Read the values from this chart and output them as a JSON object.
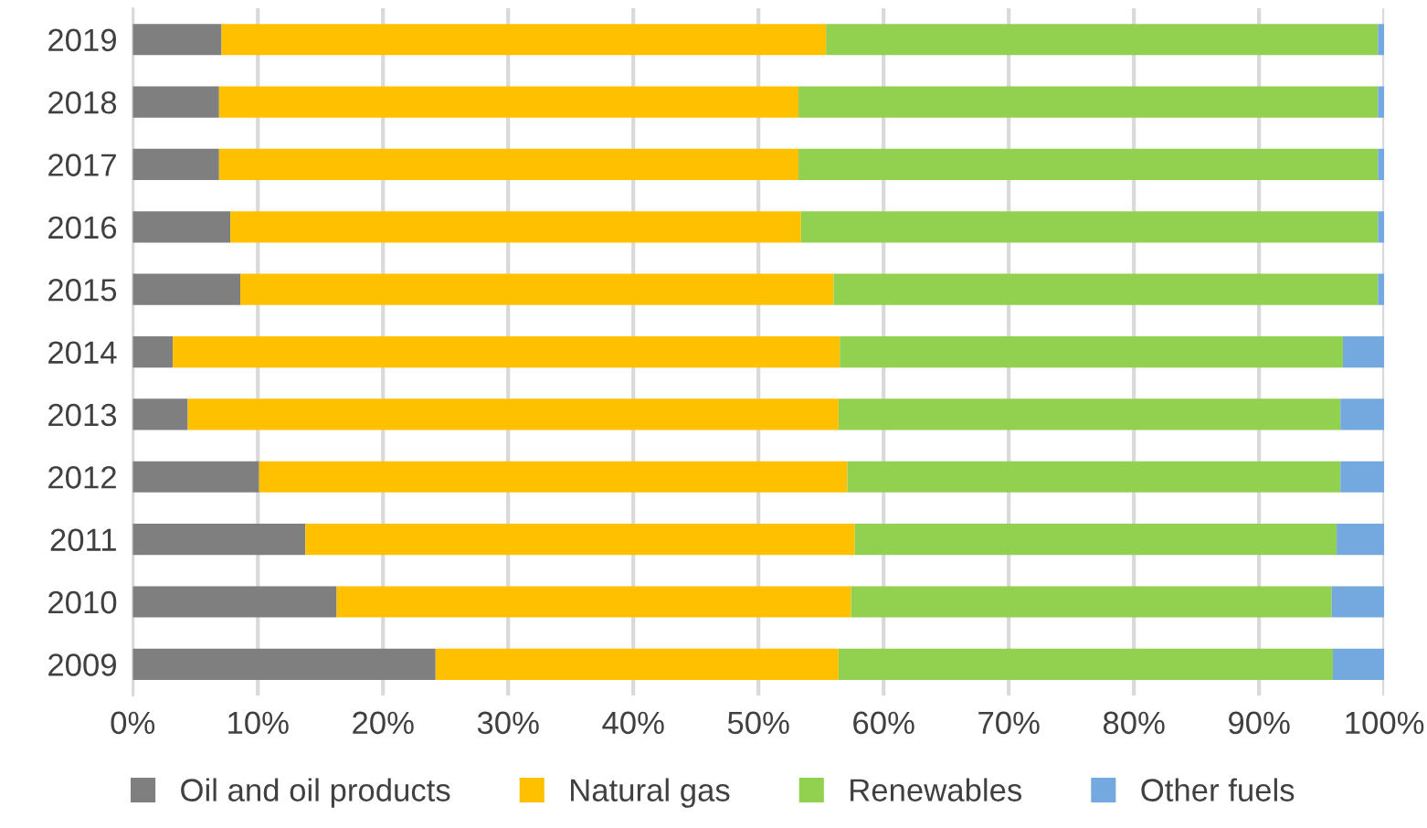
{
  "chart_data": {
    "type": "bar",
    "orientation": "horizontal",
    "stacked": true,
    "categories": [
      "2019",
      "2018",
      "2017",
      "2016",
      "2015",
      "2014",
      "2013",
      "2012",
      "2011",
      "2010",
      "2009"
    ],
    "series": [
      {
        "name": "Oil and oil products",
        "color": "#7f7f7f",
        "values": [
          7.1,
          6.9,
          6.9,
          7.8,
          8.6,
          3.2,
          4.4,
          10.1,
          13.8,
          16.3,
          24.2
        ]
      },
      {
        "name": "Natural gas",
        "color": "#ffc000",
        "values": [
          48.3,
          46.3,
          46.3,
          45.6,
          47.4,
          53.3,
          52.0,
          47.0,
          43.9,
          41.1,
          32.2
        ]
      },
      {
        "name": "Renewables",
        "color": "#92d050",
        "values": [
          44.1,
          46.3,
          46.3,
          46.1,
          43.5,
          40.2,
          40.1,
          39.4,
          38.5,
          38.4,
          39.5
        ]
      },
      {
        "name": "Other fuels",
        "color": "#74a9df",
        "values": [
          0.5,
          0.5,
          0.5,
          0.5,
          0.5,
          3.3,
          3.5,
          3.5,
          3.8,
          4.2,
          4.1
        ]
      }
    ],
    "xlim": [
      0,
      100
    ],
    "xticks": [
      {
        "value": 0,
        "label": "0%"
      },
      {
        "value": 10,
        "label": "10%"
      },
      {
        "value": 20,
        "label": "20%"
      },
      {
        "value": 30,
        "label": "30%"
      },
      {
        "value": 40,
        "label": "40%"
      },
      {
        "value": 50,
        "label": "50%"
      },
      {
        "value": 60,
        "label": "60%"
      },
      {
        "value": 70,
        "label": "70%"
      },
      {
        "value": 80,
        "label": "80%"
      },
      {
        "value": 90,
        "label": "90%"
      },
      {
        "value": 100,
        "label": "100%"
      }
    ],
    "grid": "x",
    "legend": "bottom"
  }
}
